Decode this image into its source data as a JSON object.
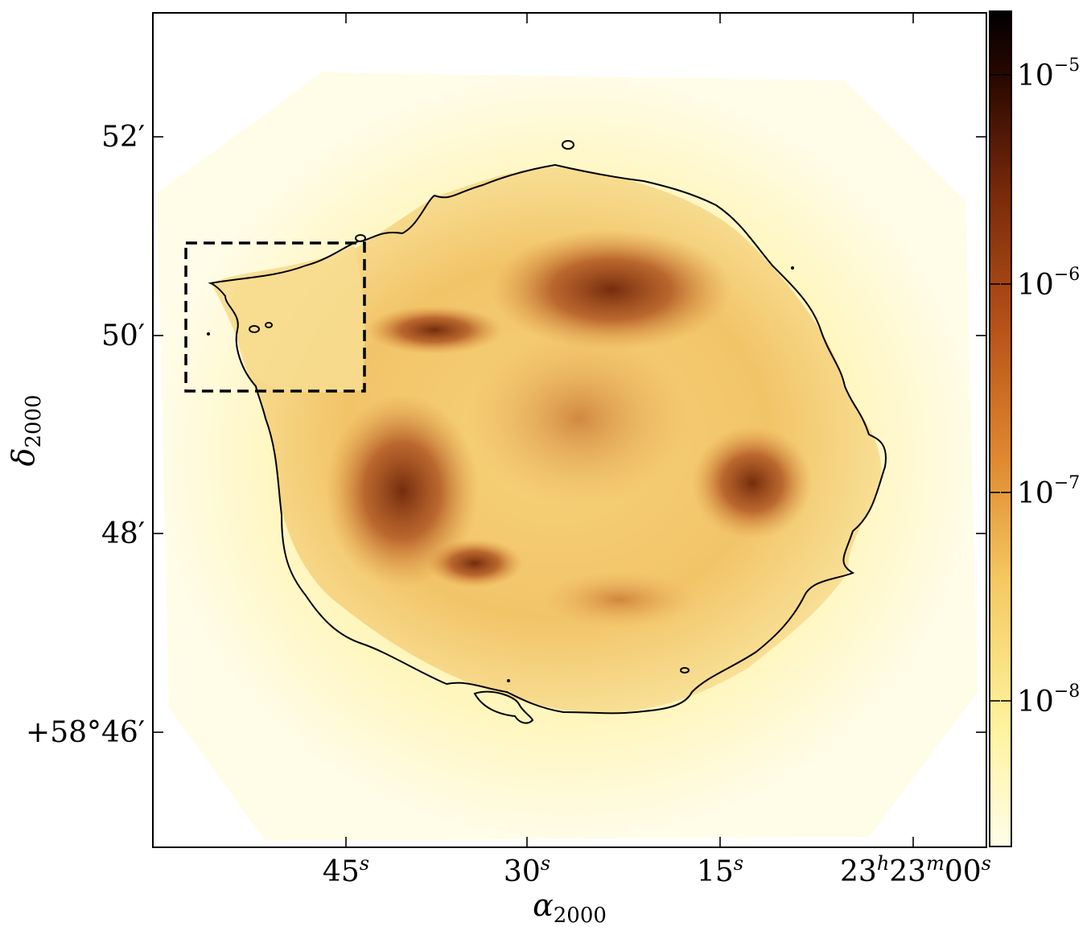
{
  "plot": {
    "x_axis": {
      "title_symbol": "α",
      "title_subscript": "2000",
      "ticks": [
        {
          "value": "45",
          "sup": "s"
        },
        {
          "value": "30",
          "sup": "s"
        },
        {
          "value": "15",
          "sup": "s"
        },
        {
          "value": "23",
          "sup": "h",
          "value2": "23",
          "sup2": "m",
          "value3": "00",
          "sup3": "s"
        }
      ]
    },
    "y_axis": {
      "title_symbol": "δ",
      "title_subscript": "2000",
      "ticks": [
        {
          "label": "52′"
        },
        {
          "label": "50′"
        },
        {
          "label": "48′"
        },
        {
          "label": "+58°46′"
        }
      ]
    },
    "colorbar": {
      "scale": "log",
      "colors": [
        "#fffde8",
        "#fff3a0",
        "#f5c860",
        "#e08a30",
        "#b8521a",
        "#7a2a0a",
        "#2a0800",
        "#000000"
      ],
      "ticks": [
        {
          "base": "10",
          "exp": "−5"
        },
        {
          "base": "10",
          "exp": "−6"
        },
        {
          "base": "10",
          "exp": "−7"
        },
        {
          "base": "10",
          "exp": "−8"
        }
      ]
    }
  }
}
